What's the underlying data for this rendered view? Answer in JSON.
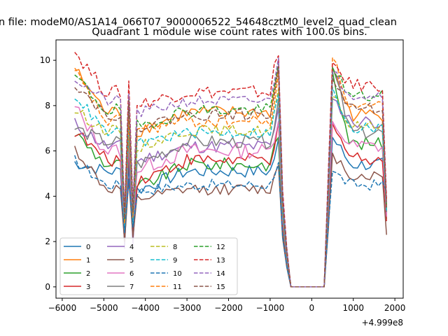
{
  "chart_data": {
    "type": "line",
    "suptitle": "n file: modeM0/AS1A14_066T07_9000006522_54648cztM0_level2_quad_clean",
    "title": "Quadrant 1 module wise count rates with 100.0s bins.",
    "xlabel": "",
    "ylabel": "",
    "offset_label": "+4.999e8",
    "xlim": [
      -6150,
      2200
    ],
    "ylim": [
      -0.5,
      10.9
    ],
    "xticks": [
      -6000,
      -5000,
      -4000,
      -3000,
      -2000,
      -1000,
      0,
      1000,
      2000
    ],
    "xtick_labels": [
      "−6000",
      "−5000",
      "−4000",
      "−3000",
      "−2000",
      "−1000",
      "0",
      "1000",
      "2000"
    ],
    "yticks": [
      0,
      2,
      4,
      6,
      8,
      10
    ],
    "ytick_labels": [
      "0",
      "2",
      "4",
      "6",
      "8",
      "10"
    ],
    "grid": false,
    "legend_position": "lower-left",
    "x": [
      -5700,
      -5600,
      -5500,
      -5400,
      -5300,
      -5200,
      -5100,
      -5000,
      -4900,
      -4800,
      -4700,
      -4600,
      -4500,
      -4400,
      -4300,
      -4200,
      -4100,
      -4000,
      -3900,
      -3800,
      -3700,
      -3600,
      -3500,
      -3400,
      -3300,
      -3200,
      -3100,
      -3000,
      -2900,
      -2800,
      -2700,
      -2600,
      -2500,
      -2400,
      -2300,
      -2200,
      -2100,
      -2000,
      -1900,
      -1800,
      -1700,
      -1600,
      -1500,
      -1400,
      -1300,
      -1200,
      -1100,
      -1000,
      -900,
      -800,
      -700,
      -600,
      -500,
      -400,
      -300,
      -200,
      -100,
      0,
      100,
      200,
      300,
      400,
      500,
      600,
      700,
      800,
      900,
      1000,
      1100,
      1200,
      1300,
      1400,
      1500,
      1600,
      1700,
      1800
    ],
    "series": [
      {
        "name": "0",
        "style": "solid",
        "color": "#1f77b4",
        "level": 5.1,
        "start": 5.5,
        "mid": 4.2,
        "dip": 1.9,
        "post_peak": 6.6,
        "post": 5.4,
        "end": 3.3,
        "noise": 0.3
      },
      {
        "name": "1",
        "style": "solid",
        "color": "#ff7f0e",
        "level": 7.7,
        "start": 9.6,
        "mid": 6.8,
        "dip": 2.6,
        "post_peak": 9.6,
        "post": 7.6,
        "end": 3.1,
        "noise": 0.3
      },
      {
        "name": "2",
        "style": "solid",
        "color": "#2ca02c",
        "level": 5.4,
        "start": 6.8,
        "mid": 4.3,
        "dip": 2.4,
        "post_peak": 9.5,
        "post": 6.3,
        "end": 3.0,
        "noise": 0.3
      },
      {
        "name": "3",
        "style": "solid",
        "color": "#d62728",
        "level": 5.6,
        "start": 6.9,
        "mid": 4.6,
        "dip": 2.2,
        "post_peak": 7.2,
        "post": 5.7,
        "end": 2.9,
        "noise": 0.3
      },
      {
        "name": "4",
        "style": "solid",
        "color": "#9467bd",
        "level": 6.2,
        "start": 7.2,
        "mid": 5.5,
        "dip": 1.7,
        "post_peak": 8.3,
        "post": 7.3,
        "end": 3.2,
        "noise": 0.3
      },
      {
        "name": "5",
        "style": "solid",
        "color": "#8c564b",
        "level": 4.3,
        "start": 6.1,
        "mid": 3.8,
        "dip": 2.0,
        "post_peak": 5.9,
        "post": 4.9,
        "end": 2.3,
        "noise": 0.25
      },
      {
        "name": "6",
        "style": "solid",
        "color": "#e377c2",
        "level": 6.0,
        "start": 7.9,
        "mid": 5.1,
        "dip": 2.6,
        "post_peak": 7.3,
        "post": 6.2,
        "end": 3.1,
        "noise": 0.35
      },
      {
        "name": "7",
        "style": "solid",
        "color": "#7f7f7f",
        "level": 6.4,
        "start": 7.0,
        "mid": 5.3,
        "dip": 2.7,
        "post_peak": 9.7,
        "post": 6.8,
        "end": 3.3,
        "noise": 0.3
      },
      {
        "name": "8",
        "style": "dashed",
        "color": "#bcbd22",
        "level": 6.9,
        "start": 7.8,
        "mid": 6.1,
        "dip": 2.7,
        "post_peak": 8.4,
        "post": 7.1,
        "end": 3.4,
        "noise": 0.25
      },
      {
        "name": "9",
        "style": "dashed",
        "color": "#17becf",
        "level": 6.8,
        "start": 8.5,
        "mid": 6.3,
        "dip": 2.5,
        "post_peak": 8.8,
        "post": 7.0,
        "end": 3.3,
        "noise": 0.25
      },
      {
        "name": "10",
        "style": "dashed",
        "color": "#1f77b4",
        "level": 4.5,
        "start": 5.6,
        "mid": 4.2,
        "dip": 2.4,
        "post_peak": 5.1,
        "post": 4.5,
        "end": 4.2,
        "noise": 0.25
      },
      {
        "name": "11",
        "style": "dashed",
        "color": "#ff7f0e",
        "level": 7.3,
        "start": 9.5,
        "mid": 6.9,
        "dip": 2.8,
        "post_peak": 10.1,
        "post": 7.9,
        "end": 3.6,
        "noise": 0.3
      },
      {
        "name": "12",
        "style": "dashed",
        "color": "#2ca02c",
        "level": 7.8,
        "start": 9.3,
        "mid": 7.0,
        "dip": 3.0,
        "post_peak": 9.7,
        "post": 8.4,
        "end": 3.5,
        "noise": 0.3
      },
      {
        "name": "13",
        "style": "dashed",
        "color": "#d62728",
        "level": 8.6,
        "start": 10.4,
        "mid": 8.0,
        "dip": 3.3,
        "post_peak": 9.9,
        "post": 8.9,
        "end": 3.9,
        "noise": 0.3
      },
      {
        "name": "14",
        "style": "dashed",
        "color": "#9467bd",
        "level": 8.2,
        "start": 9.2,
        "mid": 7.6,
        "dip": 3.2,
        "post_peak": 9.5,
        "post": 8.5,
        "end": 3.7,
        "noise": 0.25
      },
      {
        "name": "15",
        "style": "dashed",
        "color": "#8c564b",
        "level": 7.6,
        "start": 9.0,
        "mid": 7.0,
        "dip": 3.0,
        "post_peak": 9.2,
        "post": 7.9,
        "end": 3.5,
        "noise": 0.25
      }
    ],
    "legend_columns": 4
  }
}
